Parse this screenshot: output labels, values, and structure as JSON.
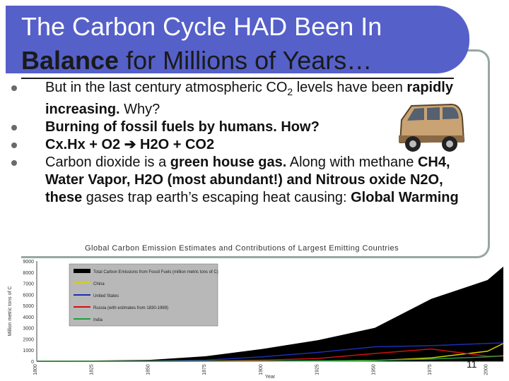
{
  "slide": {
    "title_line1": "The Carbon Cycle HAD Been In",
    "title_line2_bold": "Balance",
    "title_line2_rest": " for Millions of Years…",
    "bullets": [
      {
        "t1": "But in the last century atmospheric CO",
        "sub": "2",
        "t2": " levels have been ",
        "b1": "rapidly increasing.",
        "t3": " Why?"
      },
      {
        "b1": "Burning of fossil fuels by humans.  How?"
      },
      {
        "b1": "Cx.Hx + O2 ",
        "arrow": "➔",
        "b2": " H2O + CO2"
      },
      {
        "t1": "Carbon dioxide is a ",
        "b1": "green house gas.",
        "t2": " Along with methane ",
        "b2": "CH4, Water Vapor, H2O (most abundant!) and Nitrous oxide N2O, these",
        "t3": " gases trap earth’s escaping heat causing: ",
        "b3": "Global Warming"
      }
    ],
    "slide_number": "11"
  },
  "chart_data": {
    "type": "area",
    "title": "Global Carbon Emission Estimates and Contributions of Largest Emitting Countries",
    "xlabel": "Year",
    "ylabel": "Million metric tons of C",
    "x": [
      1800,
      1825,
      1850,
      1875,
      1900,
      1925,
      1950,
      1975,
      2000,
      2007
    ],
    "ylim": [
      0,
      9000
    ],
    "yticks": [
      "0",
      "1000",
      "2000",
      "3000",
      "4000",
      "5000",
      "6000",
      "7000",
      "8000",
      "9000"
    ],
    "xticks": [
      "1800",
      "1825",
      "1850",
      "1875",
      "1900",
      "1925",
      "1950",
      "1975",
      "2000"
    ],
    "series": [
      {
        "name": "Total Carbon Emissions from Fossil Fuels (million metric tons of C)",
        "color": "#000000",
        "values": [
          20,
          60,
          120,
          450,
          1100,
          1900,
          3000,
          5600,
          7300,
          8500
        ]
      },
      {
        "name": "China",
        "color": "#d8d000",
        "values": [
          0,
          0,
          0,
          0,
          5,
          20,
          60,
          300,
          900,
          1600
        ]
      },
      {
        "name": "United States",
        "color": "#1a2fb0",
        "values": [
          0,
          5,
          20,
          100,
          400,
          800,
          1300,
          1400,
          1600,
          1650
        ]
      },
      {
        "name": "Russia (with estimates from 1830-1989)",
        "color": "#d01010",
        "values": [
          0,
          0,
          5,
          20,
          100,
          250,
          700,
          1100,
          450,
          450
        ]
      },
      {
        "name": "India",
        "color": "#20a040",
        "values": [
          0,
          0,
          0,
          5,
          20,
          40,
          80,
          200,
          400,
          500
        ]
      }
    ]
  }
}
